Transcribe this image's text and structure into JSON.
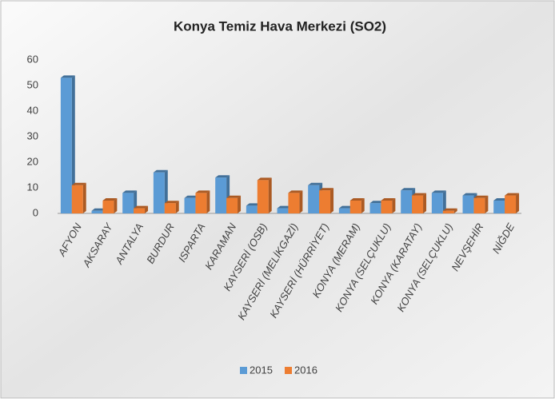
{
  "chart_data": {
    "type": "bar",
    "title": "Konya Temiz Hava Merkezi (SO2)",
    "categories": [
      "AFYON",
      "AKSARAY",
      "ANTALYA",
      "BURDUR",
      "ISPARTA",
      "KARAMAN",
      "KAYSERİ (OSB)",
      "KAYSERİ (MELİKGAZİ)",
      "KAYSERİ (HÜRRİYET)",
      "KONYA (MERAM)",
      "KONYA (SELÇUKLU)",
      "KONYA (KARATAY)",
      "KONYA (SELÇUKLU)",
      "NEVŞEHİR",
      "NİĞDE"
    ],
    "series": [
      {
        "name": "2015",
        "color": "#5b9bd5",
        "values": [
          53,
          1,
          8,
          16,
          6,
          14,
          3,
          2,
          11,
          2,
          4,
          9,
          8,
          7,
          5
        ]
      },
      {
        "name": "2016",
        "color": "#ed7d31",
        "values": [
          11,
          5,
          2,
          4,
          8,
          6,
          13,
          8,
          9,
          5,
          5,
          7,
          1,
          6,
          7
        ]
      }
    ],
    "ylim": [
      0,
      60
    ],
    "yticks": [
      0,
      10,
      20,
      30,
      40,
      50,
      60
    ],
    "legend": "bottom"
  }
}
